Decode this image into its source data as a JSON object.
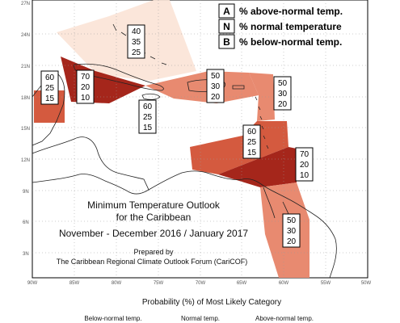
{
  "legend_key": [
    {
      "letter": "A",
      "text": "% above-normal temp."
    },
    {
      "letter": "N",
      "text": "% normal temperature"
    },
    {
      "letter": "B",
      "text": "% below-normal temp."
    }
  ],
  "lat_ticks": [
    "27N",
    "24N",
    "21N",
    "18N",
    "15N",
    "12N",
    "9N",
    "6N",
    "3N"
  ],
  "lon_ticks": [
    "90W",
    "85W",
    "80W",
    "75W",
    "70W",
    "65W",
    "60W",
    "55W",
    "50W"
  ],
  "title": {
    "line1": "Minimum Temperature Outlook",
    "line2": "for the Caribbean",
    "line3": "November - December 2016 / January 2017",
    "prepared": "Prepared by",
    "org": "The Caribbean Regional Climate Outlook Forum (CariCOF)"
  },
  "boxes": [
    {
      "id": "bahamas",
      "values": [
        "40",
        "35",
        "25"
      ]
    },
    {
      "id": "belize",
      "values": [
        "60",
        "25",
        "15"
      ]
    },
    {
      "id": "cuba-west",
      "values": [
        "70",
        "20",
        "10"
      ]
    },
    {
      "id": "jamaica",
      "values": [
        "60",
        "25",
        "15"
      ]
    },
    {
      "id": "hispaniola",
      "values": [
        "50",
        "30",
        "20"
      ]
    },
    {
      "id": "lesser-antilles",
      "values": [
        "50",
        "30",
        "20"
      ]
    },
    {
      "id": "windwards",
      "values": [
        "60",
        "25",
        "15"
      ]
    },
    {
      "id": "trinidad",
      "values": [
        "70",
        "20",
        "10"
      ]
    },
    {
      "id": "guianas",
      "values": [
        "50",
        "30",
        "20"
      ]
    }
  ],
  "bottom": {
    "caption": "Probability (%) of Most Likely Category",
    "labels": [
      "Below-normal temp.",
      "Normal temp.",
      "Above-normal temp."
    ]
  },
  "colors": {
    "above40": "#fbe3d6",
    "above50": "#e88a70",
    "above60": "#d45a3f",
    "above70": "#a5261b",
    "land": "#ffffff",
    "coast": "#222222",
    "grid": "#999999"
  }
}
